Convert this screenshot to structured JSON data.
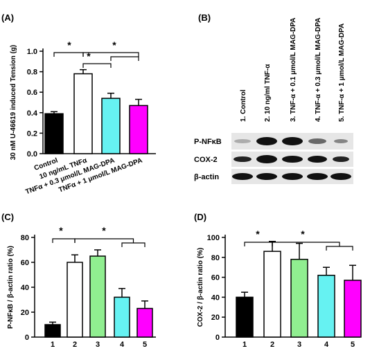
{
  "chart_data": [
    {
      "type": "bar",
      "panel": "(A)",
      "y_label": "30 nM U-46619 induced Tension (g)",
      "categories": [
        "Control",
        "10 ng/mL TNFα",
        "TNFα + 0.3 μmol/L  MAG-DPA",
        "TNFα + 1 μmol/L  MAG-DPA"
      ],
      "values": [
        0.39,
        0.78,
        0.54,
        0.47
      ],
      "errors": [
        0.02,
        0.04,
        0.05,
        0.06
      ],
      "colors": [
        "#000000",
        "#ffffff",
        "#66f2f2",
        "#ff00ff"
      ],
      "ylim": [
        0,
        1.0
      ],
      "yticks": [
        {
          "value": 0,
          "label": "0.0"
        },
        0.2,
        0.4,
        0.6,
        0.8,
        {
          "value": 1.0,
          "label": "1.0"
        }
      ],
      "annotations": [
        "*",
        "*",
        "*"
      ]
    },
    {
      "type": "bar",
      "panel": "(C)",
      "y_label": "P-NFκB / β-actin ratio (%)",
      "categories": [
        "1",
        "2",
        "3",
        "4",
        "5"
      ],
      "values": [
        10,
        60,
        65,
        32,
        23
      ],
      "errors": [
        2,
        6,
        5,
        7,
        6
      ],
      "colors": [
        "#000000",
        "#ffffff",
        "#90ee90",
        "#66f2f2",
        "#ff00ff"
      ],
      "ylim": [
        0,
        80
      ],
      "yticks": [
        0,
        20,
        40,
        60,
        80
      ],
      "annotations": [
        "*",
        "*"
      ]
    },
    {
      "type": "bar",
      "panel": "(D)",
      "y_label": "COX-2 / β-actin ratio (%)",
      "categories": [
        "1",
        "2",
        "3",
        "4",
        "5"
      ],
      "values": [
        40,
        86,
        78,
        62,
        57
      ],
      "errors": [
        5,
        10,
        16,
        8,
        15
      ],
      "colors": [
        "#000000",
        "#ffffff",
        "#90ee90",
        "#66f2f2",
        "#ff00ff"
      ],
      "ylim": [
        0,
        100
      ],
      "yticks": [
        0,
        20,
        40,
        60,
        80,
        100
      ],
      "annotations": [
        "*",
        "*"
      ]
    }
  ],
  "blot": {
    "panel": "(B)",
    "lanes": [
      "1. Control",
      "2. 10 ng/ml TNF-α",
      "3. TNF-α + 0.1 μmol/L MAG-DPA",
      "4. TNF-α + 0.3 μmol/L MAG-DPA",
      "5. TNF-α + 1 μmol/L MAG-DPA"
    ],
    "rows": [
      "P-NFκB",
      "COX-2",
      "β-actin"
    ]
  }
}
